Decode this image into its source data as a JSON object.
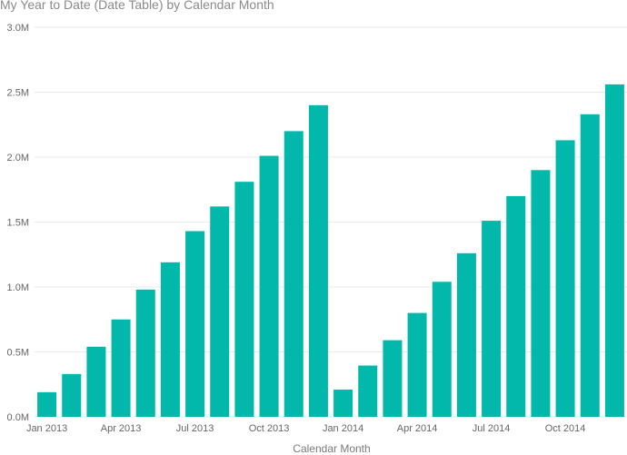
{
  "chart_data": {
    "type": "bar",
    "title": "My Year to Date (Date Table) by Calendar Month",
    "xlabel": "Calendar Month",
    "ylabel": "",
    "ylim": [
      0,
      3000000
    ],
    "y_ticks": [
      {
        "value": 0,
        "label": "0.0M"
      },
      {
        "value": 500000,
        "label": "0.5M"
      },
      {
        "value": 1000000,
        "label": "1.0M"
      },
      {
        "value": 1500000,
        "label": "1.5M"
      },
      {
        "value": 2000000,
        "label": "2.0M"
      },
      {
        "value": 2500000,
        "label": "2.5M"
      },
      {
        "value": 3000000,
        "label": "3.0M"
      }
    ],
    "x_tick_labels": [
      {
        "category": "2013-01",
        "label": "Jan 2013"
      },
      {
        "category": "2013-04",
        "label": "Apr 2013"
      },
      {
        "category": "2013-07",
        "label": "Jul 2013"
      },
      {
        "category": "2013-10",
        "label": "Oct 2013"
      },
      {
        "category": "2014-01",
        "label": "Jan 2014"
      },
      {
        "category": "2014-04",
        "label": "Apr 2014"
      },
      {
        "category": "2014-07",
        "label": "Jul 2014"
      },
      {
        "category": "2014-10",
        "label": "Oct 2014"
      }
    ],
    "grid": true,
    "bar_color": "#01B8AA",
    "categories": [
      "2013-01",
      "2013-02",
      "2013-03",
      "2013-04",
      "2013-05",
      "2013-06",
      "2013-07",
      "2013-08",
      "2013-09",
      "2013-10",
      "2013-11",
      "2013-12",
      "2014-01",
      "2014-02",
      "2014-03",
      "2014-04",
      "2014-05",
      "2014-06",
      "2014-07",
      "2014-08",
      "2014-09",
      "2014-10",
      "2014-11",
      "2014-12"
    ],
    "values": [
      190000,
      330000,
      540000,
      750000,
      980000,
      1190000,
      1430000,
      1620000,
      1810000,
      2010000,
      2200000,
      2400000,
      210000,
      395000,
      590000,
      800000,
      1040000,
      1260000,
      1510000,
      1700000,
      1900000,
      2130000,
      2330000,
      2560000
    ]
  }
}
